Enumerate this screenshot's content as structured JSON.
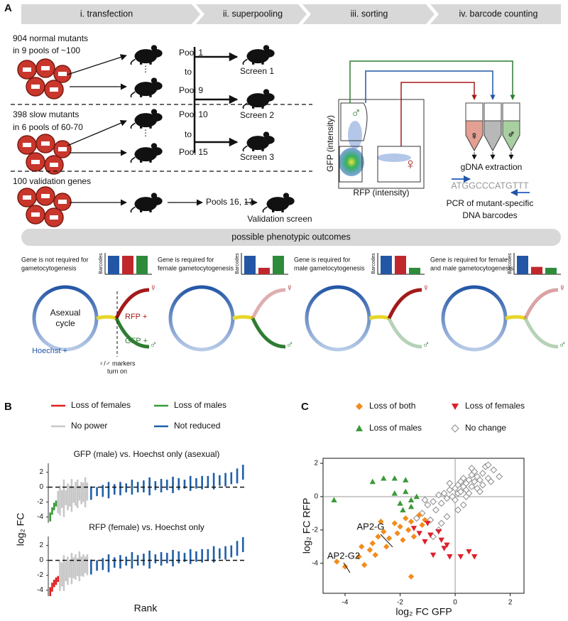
{
  "panel_a": {
    "label": "A",
    "steps": [
      "i. transfection",
      "ii. superpooling",
      "iii. sorting",
      "iv. barcode counting"
    ],
    "groups": [
      {
        "lines": [
          "904 normal mutants",
          "in 9 pools of ~100"
        ],
        "pools": [
          "Pool 1",
          "to",
          "Pool 9"
        ]
      },
      {
        "lines": [
          "398 slow mutants",
          "in 6 pools of 60-70"
        ],
        "pools": [
          "Pool 10",
          "to",
          "Pool 15"
        ]
      },
      {
        "lines": [
          "100 validation genes"
        ],
        "pools": [
          "Pools 16, 17"
        ]
      }
    ],
    "screens": [
      "Screen 1",
      "Screen 2",
      "Screen 3",
      "Validation screen"
    ],
    "facs": {
      "y_label": "GFP (intensity)",
      "x_label": "RFP (intensity)"
    },
    "barcode": {
      "extraction": "gDNA extraction",
      "sequence": "ATGGCCCATGTTT",
      "pcr": [
        "PCR of mutant-specific",
        "DNA barcodes"
      ]
    },
    "outcomes_title": "possible phenotypic outcomes",
    "bar_label": "Barcodes",
    "bar_colors": [
      "#2456a6",
      "#c0272d",
      "#2e8b3a"
    ],
    "outcomes": [
      {
        "lines": [
          "Gene is not required for",
          "gametocytogenesis"
        ],
        "barcodes": [
          1,
          1,
          1
        ]
      },
      {
        "lines": [
          "Gene is required for",
          "female gametocytogenesis"
        ],
        "barcodes": [
          1,
          0.35,
          1
        ]
      },
      {
        "lines": [
          "Gene is required for",
          "male gametocytogenesis"
        ],
        "barcodes": [
          1,
          1,
          0.35
        ]
      },
      {
        "lines": [
          "Gene is required for female",
          "and male gametocytogenesis"
        ],
        "barcodes": [
          1,
          0.4,
          0.35
        ]
      }
    ],
    "cycle_labels": {
      "center": [
        "Asexual",
        "cycle"
      ],
      "rfp": "RFP +",
      "gfp": "GFP +",
      "hoechst": "Hoechst +",
      "markers": [
        "♀/♂ markers",
        "turn on"
      ]
    }
  },
  "chart_data": [
    {
      "type": "rank",
      "panel": "B",
      "title": "GFP (male) vs. Hoechst only (asexual)",
      "y_label": "log₂ FC",
      "xlim": [
        0,
        101
      ],
      "ylim": [
        -4.8,
        3.2
      ],
      "yticks": [
        -4,
        -2,
        0,
        2
      ],
      "series": [
        {
          "name": "Loss of males",
          "color": "#3a9a3a",
          "x": [
            1,
            2,
            3,
            4
          ],
          "values": [
            -4,
            -3.2,
            -2.6,
            -2.2
          ],
          "errors": [
            0.6,
            0.5,
            0.5,
            0.4
          ]
        },
        {
          "name": "No power",
          "color": "#c8c8c8",
          "x": [
            5,
            6,
            7,
            8,
            9,
            10,
            11,
            12,
            13,
            14,
            15,
            16,
            17,
            18,
            19,
            20
          ],
          "values": [
            -2.0,
            -1.8,
            -1.6,
            -1.5,
            -1.4,
            -1.3,
            -1.2,
            -1.1,
            -1.0,
            -0.9,
            -0.9,
            -0.8,
            -0.8,
            -0.7,
            -0.7,
            -0.6
          ],
          "errors": [
            1.5,
            2.0,
            1.2,
            2.5,
            1.0,
            1.8,
            1.4,
            2.2,
            1.1,
            1.6,
            1.9,
            1.0,
            1.5,
            1.3,
            2.0,
            1.2
          ]
        },
        {
          "name": "Not reduced",
          "color": "#1f5fa8",
          "x": [
            22,
            25,
            28,
            31,
            34,
            37,
            40,
            43,
            46,
            49,
            52,
            55,
            58,
            61,
            64,
            67,
            70,
            73,
            76,
            79,
            82,
            85,
            88,
            91,
            94,
            97,
            100
          ],
          "values": [
            -0.8,
            -0.6,
            -0.5,
            -0.4,
            -0.3,
            -0.2,
            -0.1,
            0,
            0,
            0.1,
            0.1,
            0.2,
            0.2,
            0.3,
            0.3,
            0.4,
            0.4,
            0.5,
            0.5,
            0.6,
            0.7,
            0.8,
            0.9,
            1.0,
            1.2,
            1.5,
            2.0
          ],
          "errors": [
            0.9,
            0.6,
            0.8,
            1.1,
            0.7,
            0.9,
            0.6,
            1.0,
            0.7,
            0.8,
            1.2,
            0.6,
            0.9,
            0.7,
            1.1,
            0.8,
            0.6,
            1.0,
            0.7,
            0.9,
            0.8,
            1.1,
            0.7,
            0.9,
            0.8,
            1.0,
            1.0
          ]
        }
      ]
    },
    {
      "type": "rank",
      "title": "RFP (female) vs. Hoechst only",
      "x_label": "Rank",
      "xlim": [
        0,
        101
      ],
      "ylim": [
        -4.8,
        3.2
      ],
      "yticks": [
        -4,
        -2,
        0,
        2
      ],
      "series": [
        {
          "name": "Loss of females",
          "color": "#e02020",
          "x": [
            1,
            2,
            3,
            4,
            5
          ],
          "values": [
            -4.2,
            -3.6,
            -3.1,
            -2.8,
            -2.5
          ],
          "errors": [
            0.6,
            0.6,
            0.5,
            0.5,
            0.4
          ]
        },
        {
          "name": "No power",
          "color": "#c8c8c8",
          "x": [
            6,
            7,
            8,
            9,
            10,
            11,
            12,
            13,
            14,
            15,
            16,
            17,
            18,
            19,
            20
          ],
          "values": [
            -2.1,
            -1.9,
            -1.7,
            -1.5,
            -1.4,
            -1.2,
            -1.1,
            -1.0,
            -0.9,
            -0.9,
            -0.8,
            -0.8,
            -0.7,
            -0.6,
            -0.6
          ],
          "errors": [
            2.0,
            1.6,
            2.4,
            1.3,
            1.9,
            1.1,
            2.1,
            1.4,
            1.7,
            1.2,
            2.0,
            1.3,
            1.5,
            1.1,
            1.4
          ]
        },
        {
          "name": "Not reduced",
          "color": "#1f5fa8",
          "x": [
            22,
            25,
            28,
            31,
            34,
            37,
            40,
            43,
            46,
            49,
            52,
            55,
            58,
            61,
            64,
            67,
            70,
            73,
            76,
            79,
            82,
            85,
            88,
            91,
            94,
            97,
            100
          ],
          "values": [
            -0.9,
            -0.7,
            -0.5,
            -0.4,
            -0.3,
            -0.2,
            -0.1,
            0,
            0,
            0.1,
            0.1,
            0.2,
            0.2,
            0.3,
            0.3,
            0.4,
            0.4,
            0.5,
            0.5,
            0.6,
            0.7,
            0.8,
            0.9,
            1.0,
            1.2,
            1.6,
            2.1
          ],
          "errors": [
            1.0,
            0.7,
            0.8,
            1.2,
            0.7,
            0.9,
            0.6,
            1.1,
            0.7,
            0.8,
            1.2,
            0.6,
            0.9,
            0.7,
            1.1,
            0.8,
            0.6,
            1.0,
            0.7,
            0.9,
            0.8,
            1.1,
            0.7,
            0.9,
            0.8,
            1.0,
            1.0
          ]
        }
      ]
    },
    {
      "type": "scatter",
      "panel": "C",
      "x_label": "log₂ FC GFP",
      "y_label": "log₂ FC RFP",
      "xlim": [
        -4.8,
        2.5
      ],
      "ylim": [
        -5.8,
        2.3
      ],
      "xticks": [
        -4,
        -2,
        0,
        2
      ],
      "yticks": [
        -4,
        -2,
        0,
        2
      ],
      "annotations": [
        "AP2-G",
        "AP2-G2"
      ],
      "series": [
        {
          "name": "Loss of both",
          "color": "#f28c1e",
          "marker": "diamond",
          "x": [
            -4.3,
            -4.0,
            -3.5,
            -3.3,
            -3.1,
            -3.0,
            -2.8,
            -2.9,
            -2.6,
            -2.5,
            -2.4,
            -2.2,
            -2.1,
            -2.0,
            -1.9,
            -1.8,
            -1.7,
            -1.6,
            -1.5,
            -1.3,
            -1.2,
            -1.6,
            -1.1,
            -2.7,
            -3.4
          ],
          "values": [
            -3.9,
            -4.2,
            -3.6,
            -4.1,
            -3.2,
            -2.8,
            -2.4,
            -3.5,
            -2.1,
            -3.0,
            -2.5,
            -1.6,
            -2.2,
            -1.8,
            -2.6,
            -1.3,
            -2.0,
            -1.5,
            -2.4,
            -1.1,
            -1.7,
            -4.8,
            -1.4,
            -1.5,
            -3.0
          ]
        },
        {
          "name": "Loss of females",
          "color": "#e0202a",
          "marker": "triangle-down",
          "x": [
            -1.5,
            -1.3,
            -1.1,
            -0.9,
            -0.8,
            -0.5,
            -0.4,
            -0.2,
            0.2,
            0.5,
            0.7,
            -1.0,
            -0.3,
            -0.6
          ],
          "values": [
            -1.9,
            -2.2,
            -2.7,
            -2.3,
            -3.5,
            -2.6,
            -3.1,
            -3.6,
            -3.6,
            -3.3,
            -3.6,
            -1.6,
            -2.9,
            -2.1
          ]
        },
        {
          "name": "Loss of males",
          "color": "#3a9a3a",
          "marker": "triangle-up",
          "x": [
            -4.4,
            -3.0,
            -2.6,
            -2.2,
            -1.8,
            -2.2,
            -2.0,
            -1.8,
            -1.6,
            -1.4,
            -1.9,
            -1.6
          ],
          "values": [
            -0.2,
            0.9,
            1.1,
            1.1,
            1.0,
            0.2,
            -0.4,
            0.3,
            -0.2,
            0.0,
            -0.8,
            -0.6
          ]
        },
        {
          "name": "No change",
          "color": "#8a8a8a",
          "marker": "diamond-open",
          "x": [
            -1.2,
            -1.0,
            -0.9,
            -0.8,
            -0.7,
            -0.6,
            -0.5,
            -0.4,
            -0.3,
            -0.2,
            -0.1,
            0,
            0,
            0.1,
            0.1,
            0.2,
            0.2,
            0.3,
            0.3,
            0.4,
            0.4,
            0.5,
            0.5,
            0.6,
            0.6,
            0.7,
            0.7,
            0.8,
            0.8,
            0.9,
            1.0,
            1.0,
            1.1,
            1.2,
            1.3,
            1.4,
            1.6,
            -0.5,
            -0.3,
            0.1,
            0.3,
            -0.8,
            -1.4,
            -0.6,
            0.4,
            0.9,
            1.2,
            -1.1,
            -0.2,
            0.6
          ],
          "values": [
            -1.0,
            -0.5,
            -1.4,
            -0.3,
            -0.8,
            0.1,
            -0.4,
            0.2,
            -0.1,
            0.4,
            0.0,
            0.5,
            -0.2,
            0.7,
            0.2,
            0.9,
            0.3,
            0.6,
            1.1,
            0.4,
            0.8,
            1.0,
            0.2,
            1.3,
            0.6,
            0.9,
            1.5,
            0.5,
            1.2,
            1.0,
            1.4,
            0.7,
            1.8,
            1.1,
            0.9,
            1.6,
            1.2,
            -1.6,
            -1.2,
            -0.8,
            -0.5,
            -2.4,
            -1.3,
            -2.0,
            0.0,
            0.3,
            1.9,
            -0.2,
            0.8,
            1.7
          ]
        }
      ]
    }
  ]
}
